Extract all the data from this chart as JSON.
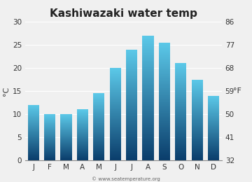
{
  "title": "Kashiwazaki water temp",
  "months": [
    "J",
    "F",
    "M",
    "A",
    "M",
    "J",
    "J",
    "A",
    "S",
    "O",
    "N",
    "D"
  ],
  "values_c": [
    12,
    10,
    10,
    11,
    14.5,
    20,
    24,
    27,
    25.5,
    21,
    17.5,
    14
  ],
  "ylim_c": [
    0,
    30
  ],
  "yticks_c": [
    0,
    5,
    10,
    15,
    20,
    25,
    30
  ],
  "yticks_f": [
    32,
    41,
    50,
    59,
    68,
    77,
    86
  ],
  "ylabel_left": "°C",
  "ylabel_right": "°F",
  "bar_color_top": "#5bc8e8",
  "bar_color_bottom": "#0a3d6b",
  "background_color": "#f0f0f0",
  "plot_bg_color": "#f0f0f0",
  "grid_color": "#ffffff",
  "watermark": "© www.seatemperature.org",
  "title_fontsize": 11,
  "tick_fontsize": 7.5,
  "label_fontsize": 8,
  "bar_width": 0.7
}
